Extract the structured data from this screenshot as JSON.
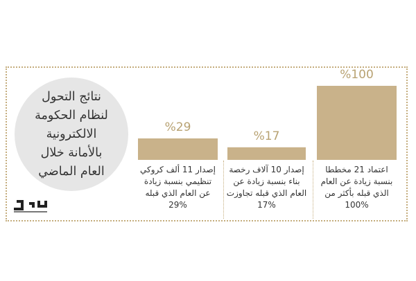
{
  "infographic": {
    "title": "نتائج التحول\nلنظام الحكومة\nالالكترونية\nبالأمانة خلال\nالعام الماضي",
    "brand_logo": "مكة"
  },
  "colors": {
    "bar": "#c9b28a",
    "bar_top": "#b59c6a",
    "accent_text": "#b8a272",
    "frame": "#c4ac7c",
    "circle": "#e6e6e6"
  },
  "chart_data": {
    "type": "bar",
    "categories": [
      "اعتماد 21 مخططا\nبنسبة زيادة عن العام\nالذي قبله بأكثر من\n100%",
      "إصدار 10 آلاف رخصة\nبناء بنسبة زيادة عن\nالعام الذي قبله تجاوزت\n17%",
      "إصدار 11 ألف كروكي\nتنظيمي بنسبة زيادة\nعن العام الذي قبله\n29%"
    ],
    "values": [
      100,
      17,
      29
    ],
    "value_labels": [
      "%100",
      "%17",
      "%29"
    ],
    "ylim": [
      0,
      100
    ],
    "grid": false,
    "legend": "none"
  }
}
